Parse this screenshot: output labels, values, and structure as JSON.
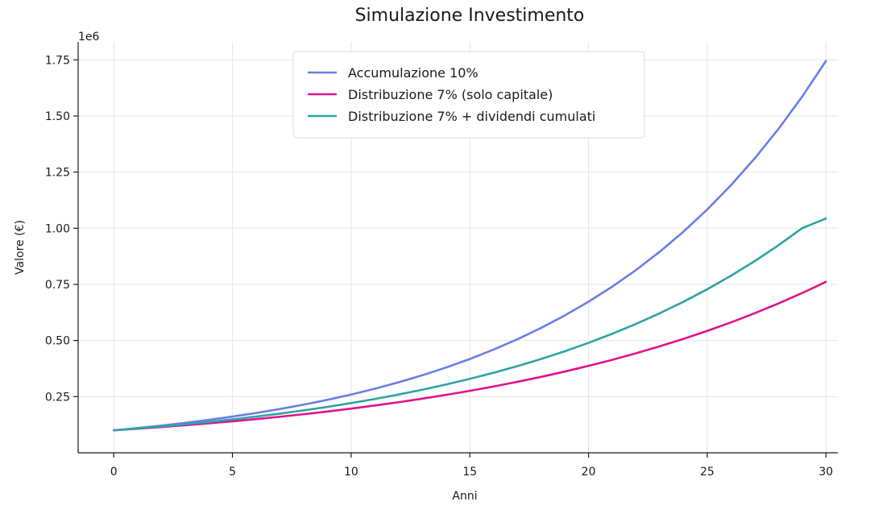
{
  "chart_data": {
    "type": "line",
    "title": "Simulazione Investimento",
    "xlabel": "Anni",
    "ylabel": "Valore (€)",
    "y_offset_label": "1e6",
    "xlim": [
      -1.5,
      30.5
    ],
    "ylim": [
      0.0,
      1.83
    ],
    "grid": true,
    "legend_position": "top-center",
    "x_ticks": [
      0,
      5,
      10,
      15,
      20,
      25,
      30
    ],
    "x_tick_labels": [
      "0",
      "5",
      "10",
      "15",
      "20",
      "25",
      "30"
    ],
    "y_ticks": [
      0.25,
      0.5,
      0.75,
      1.0,
      1.25,
      1.5,
      1.75
    ],
    "y_tick_labels": [
      "0.25",
      "0.50",
      "0.75",
      "1.00",
      "1.25",
      "1.50",
      "1.75"
    ],
    "x": [
      0,
      1,
      2,
      3,
      4,
      5,
      6,
      7,
      8,
      9,
      10,
      11,
      12,
      13,
      14,
      15,
      16,
      17,
      18,
      19,
      20,
      21,
      22,
      23,
      24,
      25,
      26,
      27,
      28,
      29,
      30
    ],
    "series": [
      {
        "name": "Accumulazione 10%",
        "color": "#6a7ee8",
        "values": [
          0.1,
          0.11,
          0.121,
          0.1331,
          0.1464,
          0.1611,
          0.1772,
          0.1949,
          0.2144,
          0.2358,
          0.2594,
          0.2853,
          0.3138,
          0.3452,
          0.3797,
          0.4177,
          0.4595,
          0.5054,
          0.556,
          0.6116,
          0.6727,
          0.74,
          0.814,
          0.8954,
          0.985,
          1.0835,
          1.1918,
          1.311,
          1.4421,
          1.5863,
          1.7449
        ]
      },
      {
        "name": "Distribuzione 7% (solo capitale)",
        "color": "#e0128e",
        "values": [
          0.1,
          0.107,
          0.1145,
          0.1225,
          0.1311,
          0.1403,
          0.1501,
          0.1606,
          0.1718,
          0.1838,
          0.1967,
          0.2105,
          0.2252,
          0.241,
          0.2579,
          0.2759,
          0.2952,
          0.3159,
          0.338,
          0.3617,
          0.387,
          0.4141,
          0.443,
          0.474,
          0.5072,
          0.5427,
          0.5807,
          0.6214,
          0.6649,
          0.7114,
          0.7612
        ]
      },
      {
        "name": "Distribuzione 7% + dividendi cumulati",
        "color": "#2ea4a6",
        "values": [
          0.1,
          0.1083,
          0.1172,
          0.1269,
          0.1374,
          0.1488,
          0.1611,
          0.1744,
          0.1888,
          0.2044,
          0.2213,
          0.2396,
          0.2594,
          0.2808,
          0.3041,
          0.3292,
          0.3564,
          0.3858,
          0.4177,
          0.4522,
          0.4896,
          0.5301,
          0.5739,
          0.6213,
          0.6726,
          0.7282,
          0.7884,
          0.8536,
          0.9241,
          1.0005,
          1.0432
        ]
      }
    ]
  }
}
